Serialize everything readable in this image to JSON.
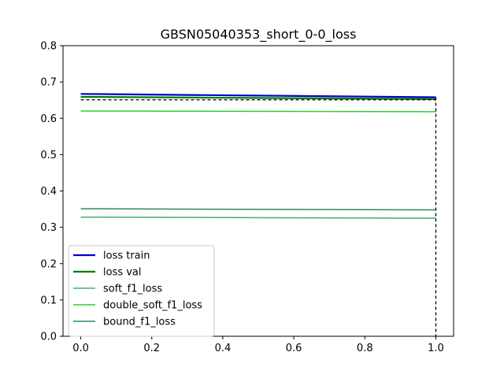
{
  "chart_data": {
    "type": "line",
    "title": "GBSN05040353_short_0-0_loss",
    "xlabel": "",
    "ylabel": "",
    "xlim": [
      -0.05,
      1.05
    ],
    "ylim": [
      0.0,
      0.8
    ],
    "x_ticks": [
      0.0,
      0.2,
      0.4,
      0.6,
      0.8,
      1.0
    ],
    "x_tick_labels": [
      "0.0",
      "0.2",
      "0.4",
      "0.6",
      "0.8",
      "1.0"
    ],
    "y_ticks": [
      0.0,
      0.1,
      0.2,
      0.3,
      0.4,
      0.5,
      0.6,
      0.7,
      0.8
    ],
    "y_tick_labels": [
      "0.0",
      "0.1",
      "0.2",
      "0.3",
      "0.4",
      "0.5",
      "0.6",
      "0.7",
      "0.8"
    ],
    "grid": false,
    "legend_position": "lower-left",
    "x": [
      0,
      1
    ],
    "series": [
      {
        "name": "loss train",
        "values": [
          0.667,
          0.658
        ],
        "color": "#0000cc",
        "width": 2.2,
        "dash": ""
      },
      {
        "name": "loss val",
        "values": [
          0.659,
          0.653
        ],
        "color": "#007a00",
        "width": 2.2,
        "dash": ""
      },
      {
        "name": "soft_f1_loss",
        "values": [
          0.328,
          0.325
        ],
        "color": "#3cb371",
        "width": 1.5,
        "dash": ""
      },
      {
        "name": "double_soft_f1_loss",
        "values": [
          0.62,
          0.618
        ],
        "color": "#32cd32",
        "width": 1.5,
        "dash": ""
      },
      {
        "name": "bound_f1_loss",
        "values": [
          0.351,
          0.348
        ],
        "color": "#2e8b57",
        "width": 1.5,
        "dash": ""
      }
    ],
    "reference_lines": [
      {
        "orientation": "horizontal",
        "value": 0.651,
        "color": "#000000",
        "dash": "4,3"
      },
      {
        "orientation": "vertical",
        "value": 1.0,
        "color": "#000000",
        "dash": "4,3"
      }
    ]
  }
}
